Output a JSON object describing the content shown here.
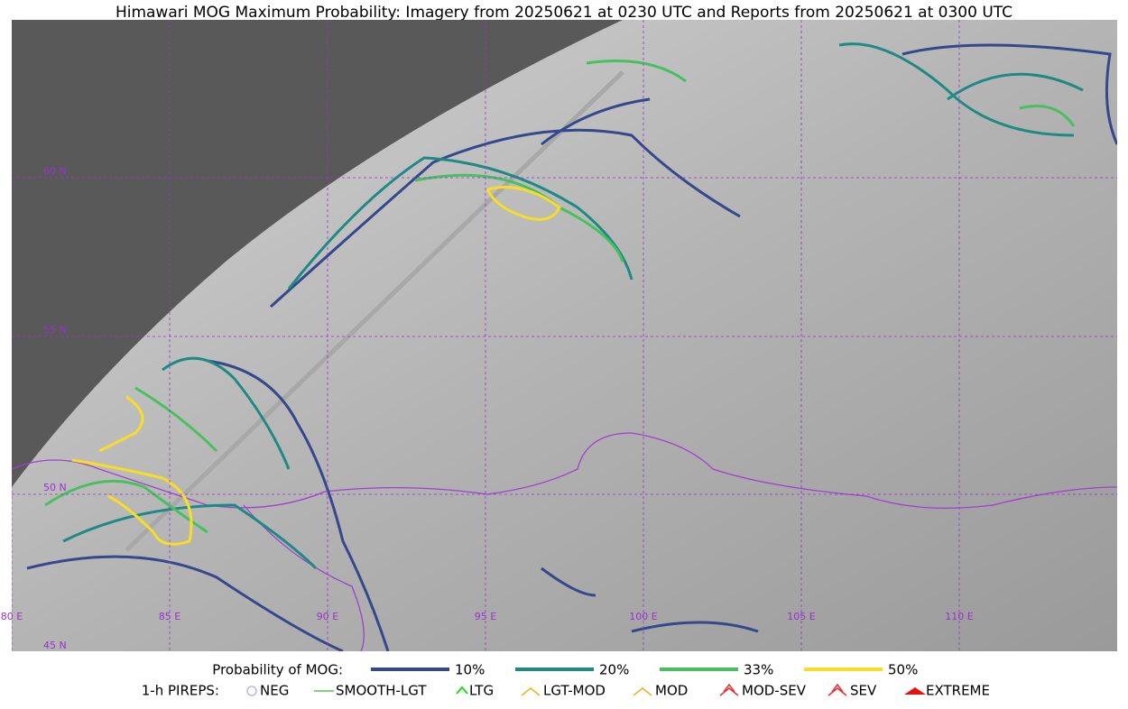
{
  "title": "Himawari MOG Maximum Probability: Imagery from 20250621 at 0230 UTC and Reports from 20250621 at 0300 UTC",
  "latitudes": [
    "60 N",
    "55 N",
    "50 N",
    "45 N"
  ],
  "longitudes": [
    "80 E",
    "85 E",
    "90 E",
    "95 E",
    "100 E",
    "105 E",
    "110 E"
  ],
  "probability_legend": {
    "title": "Probability of MOG:",
    "items": [
      {
        "label": "10%",
        "color": "#34488c"
      },
      {
        "label": "20%",
        "color": "#1f8a84"
      },
      {
        "label": "33%",
        "color": "#48c060"
      },
      {
        "label": "50%",
        "color": "#f7dd26"
      }
    ]
  },
  "pirep_legend": {
    "title": "1-h PIREPS:",
    "items": [
      {
        "label": "NEG",
        "color": "#b8b8f0"
      },
      {
        "label": "SMOOTH-LGT",
        "color": "#48d048"
      },
      {
        "label": "LTG",
        "color": "#18e018"
      },
      {
        "label": "LGT-MOD",
        "color": "#f0b020"
      },
      {
        "label": "MOD",
        "color": "#f0b020"
      },
      {
        "label": "MOD-SEV",
        "color": "#e83030"
      },
      {
        "label": "SEV",
        "color": "#e83030"
      },
      {
        "label": "EXTREME",
        "color": "#e81010"
      }
    ]
  }
}
